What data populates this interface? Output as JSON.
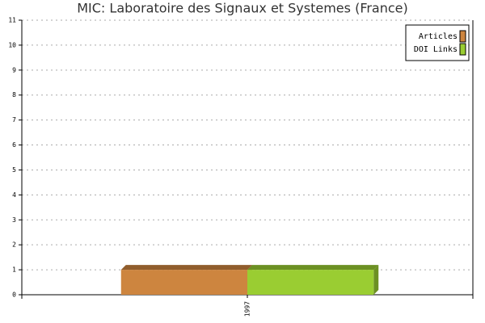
{
  "chart_data": {
    "type": "bar",
    "title": "MIC: Laboratoire des Signaux et Systemes (France)",
    "categories": [
      "1997"
    ],
    "series": [
      {
        "name": "Articles",
        "color": "#cd853f",
        "values": [
          1
        ]
      },
      {
        "name": "DOI Links",
        "color": "#9acd32",
        "values": [
          1
        ]
      }
    ],
    "ylim": [
      0,
      11
    ],
    "yticks": [
      0,
      1,
      2,
      3,
      4,
      5,
      6,
      7,
      8,
      9,
      10,
      11
    ],
    "grid": true,
    "legend": "upper-right"
  }
}
